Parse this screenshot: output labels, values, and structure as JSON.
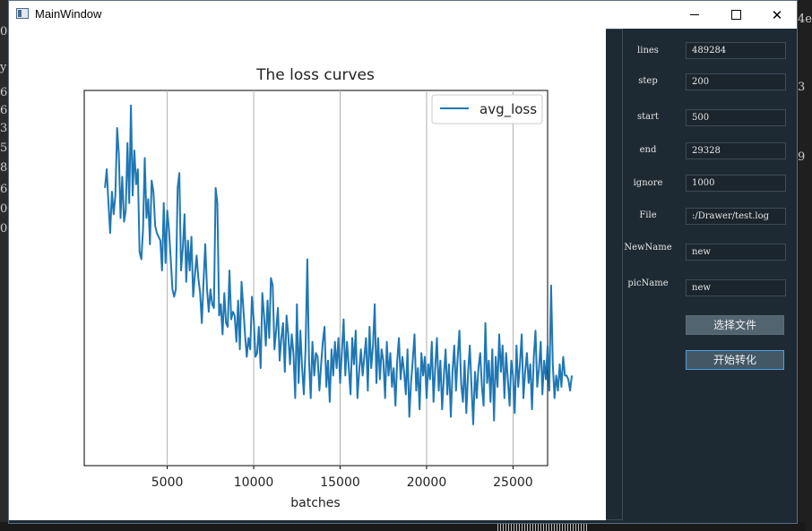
{
  "window": {
    "title": "MainWindow"
  },
  "desktop": {
    "left_chars": [
      "0",
      "y",
      "6",
      "6",
      "3",
      "5",
      "8",
      "6",
      "0",
      "0"
    ],
    "right_chars": [
      "4e",
      "3",
      "9"
    ]
  },
  "form": {
    "fields": [
      {
        "label": "lines",
        "value": "489284"
      },
      {
        "label": "step",
        "value": "200"
      },
      {
        "label": "start",
        "value": "500"
      },
      {
        "label": "end",
        "value": "29328"
      },
      {
        "label": "ignore",
        "value": "1000"
      },
      {
        "label": "File",
        "value": ":/Drawer/test.log"
      },
      {
        "label": "NewName",
        "value": "new"
      },
      {
        "label": "picName",
        "value": "new"
      }
    ],
    "select_file_button": "选择文件",
    "start_convert_button": "开始转化"
  },
  "chart_data": {
    "type": "line",
    "title": "The loss curves",
    "xlabel": "batches",
    "ylabel": "",
    "xlim": [
      200,
      27000
    ],
    "ylim": [
      0,
      1
    ],
    "x_ticks": [
      5000,
      10000,
      15000,
      20000,
      25000
    ],
    "x_tick_labels": [
      "5000",
      "10000",
      "15000",
      "20000",
      "25000"
    ],
    "y_ticks_visible": false,
    "grid": "vertical",
    "legend": "top-right",
    "series": [
      {
        "name": "avg_loss",
        "color": "#1f77b4",
        "x_start": 1400,
        "x_step": 100,
        "y": [
          0.74,
          0.79,
          0.7,
          0.62,
          0.73,
          0.67,
          0.72,
          0.9,
          0.83,
          0.66,
          0.77,
          0.65,
          0.68,
          0.86,
          0.7,
          0.96,
          0.72,
          0.84,
          0.75,
          0.79,
          0.57,
          0.55,
          0.63,
          0.82,
          0.66,
          0.71,
          0.59,
          0.76,
          0.73,
          0.64,
          0.62,
          0.61,
          0.6,
          0.52,
          0.7,
          0.54,
          0.68,
          0.63,
          0.55,
          0.47,
          0.45,
          0.47,
          0.74,
          0.78,
          0.52,
          0.58,
          0.67,
          0.49,
          0.6,
          0.52,
          0.61,
          0.45,
          0.51,
          0.56,
          0.5,
          0.46,
          0.38,
          0.49,
          0.59,
          0.47,
          0.41,
          0.47,
          0.43,
          0.42,
          0.74,
          0.7,
          0.4,
          0.43,
          0.35,
          0.46,
          0.38,
          0.37,
          0.52,
          0.39,
          0.41,
          0.4,
          0.33,
          0.44,
          0.31,
          0.49,
          0.42,
          0.35,
          0.29,
          0.34,
          0.31,
          0.45,
          0.39,
          0.29,
          0.3,
          0.37,
          0.26,
          0.46,
          0.4,
          0.32,
          0.44,
          0.34,
          0.5,
          0.48,
          0.31,
          0.36,
          0.42,
          0.28,
          0.34,
          0.38,
          0.25,
          0.4,
          0.35,
          0.27,
          0.35,
          0.3,
          0.18,
          0.43,
          0.22,
          0.36,
          0.26,
          0.19,
          0.31,
          0.55,
          0.28,
          0.18,
          0.33,
          0.24,
          0.3,
          0.29,
          0.2,
          0.27,
          0.33,
          0.37,
          0.21,
          0.28,
          0.17,
          0.31,
          0.24,
          0.33,
          0.26,
          0.34,
          0.22,
          0.3,
          0.39,
          0.24,
          0.33,
          0.26,
          0.19,
          0.34,
          0.27,
          0.36,
          0.18,
          0.25,
          0.31,
          0.24,
          0.29,
          0.34,
          0.2,
          0.37,
          0.26,
          0.32,
          0.43,
          0.22,
          0.34,
          0.23,
          0.31,
          0.28,
          0.18,
          0.33,
          0.24,
          0.3,
          0.21,
          0.26,
          0.16,
          0.28,
          0.34,
          0.23,
          0.29,
          0.25,
          0.19,
          0.31,
          0.13,
          0.22,
          0.28,
          0.35,
          0.2,
          0.26,
          0.15,
          0.3,
          0.24,
          0.29,
          0.18,
          0.27,
          0.23,
          0.33,
          0.17,
          0.26,
          0.34,
          0.2,
          0.28,
          0.15,
          0.24,
          0.31,
          0.19,
          0.27,
          0.13,
          0.25,
          0.32,
          0.2,
          0.29,
          0.36,
          0.22,
          0.17,
          0.28,
          0.14,
          0.25,
          0.32,
          0.21,
          0.11,
          0.25,
          0.18,
          0.26,
          0.3,
          0.21,
          0.16,
          0.38,
          0.22,
          0.28,
          0.17,
          0.31,
          0.12,
          0.29,
          0.21,
          0.35,
          0.25,
          0.32,
          0.18,
          0.3,
          0.23,
          0.16,
          0.28,
          0.24,
          0.14,
          0.32,
          0.21,
          0.27,
          0.35,
          0.18,
          0.25,
          0.3,
          0.22,
          0.27,
          0.15,
          0.29,
          0.36,
          0.21,
          0.26,
          0.33,
          0.19,
          0.28,
          0.23,
          0.32,
          0.2,
          0.48,
          0.27,
          0.18,
          0.24,
          0.2,
          0.27,
          0.21,
          0.29,
          0.24,
          0.24,
          0.23,
          0.2,
          0.24
        ]
      }
    ]
  }
}
